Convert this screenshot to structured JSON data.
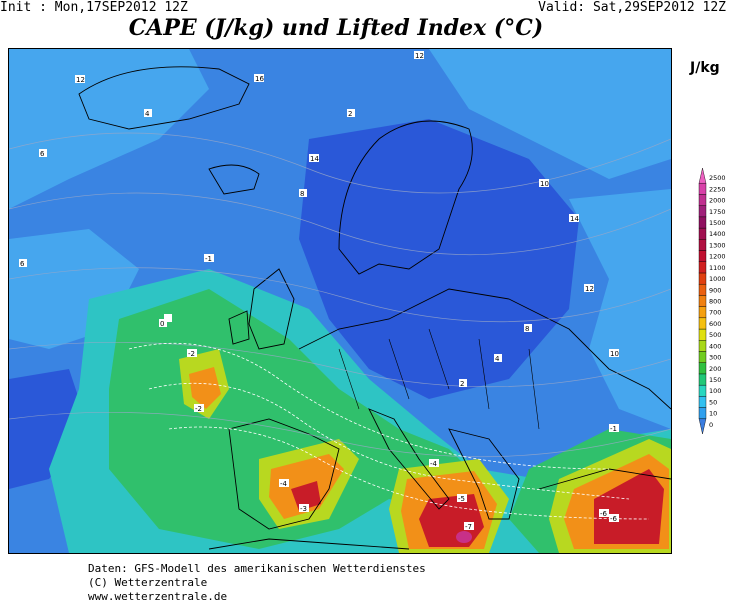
{
  "header": {
    "init": "Init : Mon,17SEP2012 12Z",
    "valid": "Valid: Sat,29SEP2012 12Z",
    "title": "CAPE (J/kg) und Lifted Index (°C)"
  },
  "legend": {
    "unit": "J/kg",
    "levels": [
      "0",
      "10",
      "50",
      "100",
      "150",
      "200",
      "300",
      "400",
      "500",
      "600",
      "700",
      "800",
      "900",
      "1000",
      "1100",
      "1200",
      "1300",
      "1400",
      "1500",
      "1750",
      "2000",
      "2250",
      "2500"
    ],
    "colors": [
      "#3a7de0",
      "#2fa0ee",
      "#31c0f0",
      "#28d7c0",
      "#20c878",
      "#30c040",
      "#70cc20",
      "#a8d818",
      "#e0e010",
      "#f5c010",
      "#f5a010",
      "#f08010",
      "#ea6010",
      "#e04010",
      "#d02020",
      "#c01030",
      "#b01040",
      "#a01050",
      "#901060",
      "#a0207a",
      "#c03090",
      "#d840a8",
      "#ec60c0"
    ]
  },
  "map": {
    "colors": {
      "background": "#3a84e2",
      "dark_blue": "#2a58d8",
      "light_blue": "#46a6ee",
      "teal": "#2ec4c4",
      "green": "#30c06c",
      "yellow_green": "#b8d820",
      "orange": "#f29018",
      "red": "#c81c28",
      "magenta": "#c83088",
      "coast": "#000000"
    },
    "labels": [
      "12",
      "6",
      "4",
      "2",
      "0",
      "-1",
      "-2",
      "-3",
      "-4",
      "-5",
      "-6",
      "-7",
      "8",
      "10",
      "14",
      "16",
      "12",
      "6",
      "-3",
      "-1",
      "4",
      "2",
      "8",
      "10",
      "12",
      "14",
      "-2",
      "0",
      "-4",
      "-6"
    ]
  },
  "footer": {
    "line1": "Daten: GFS-Modell des amerikanischen Wetterdienstes",
    "line2": "(C) Wetterzentrale",
    "line3": "www.wetterzentrale.de"
  }
}
